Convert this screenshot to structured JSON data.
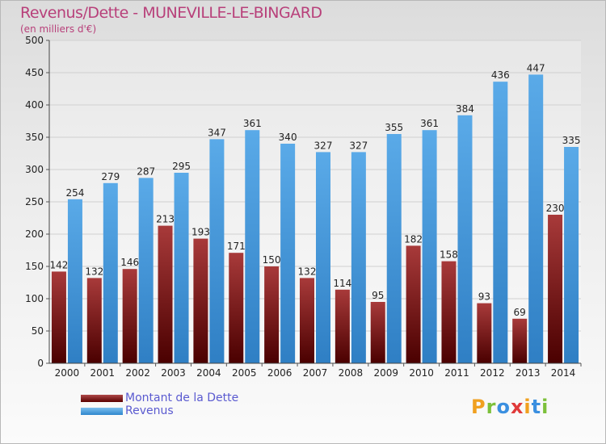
{
  "title": "Revenus/Dette - MUNEVILLE-LE-BINGARD",
  "subtitle": "(en milliers d'€)",
  "logo": "Proxiti",
  "colors": {
    "dette": "#7a1a1a",
    "revenus": "#4a9fe0",
    "title": "#b8407a",
    "legend_text": "#5a5ad0"
  },
  "chart_data": {
    "type": "bar",
    "categories": [
      "2000",
      "2001",
      "2002",
      "2003",
      "2004",
      "2005",
      "2006",
      "2007",
      "2008",
      "2009",
      "2010",
      "2011",
      "2012",
      "2013",
      "2014"
    ],
    "series": [
      {
        "name": "Montant de la Dette",
        "values": [
          142,
          132,
          146,
          213,
          193,
          171,
          150,
          132,
          114,
          95,
          182,
          158,
          93,
          69,
          230
        ]
      },
      {
        "name": "Revenus",
        "values": [
          254,
          279,
          287,
          295,
          347,
          361,
          340,
          327,
          327,
          355,
          361,
          384,
          436,
          447,
          335
        ]
      }
    ],
    "ylim": [
      0,
      500
    ],
    "yticks": [
      0,
      50,
      100,
      150,
      200,
      250,
      300,
      350,
      400,
      450,
      500
    ],
    "grid": true,
    "legend_position": "bottom-left"
  }
}
